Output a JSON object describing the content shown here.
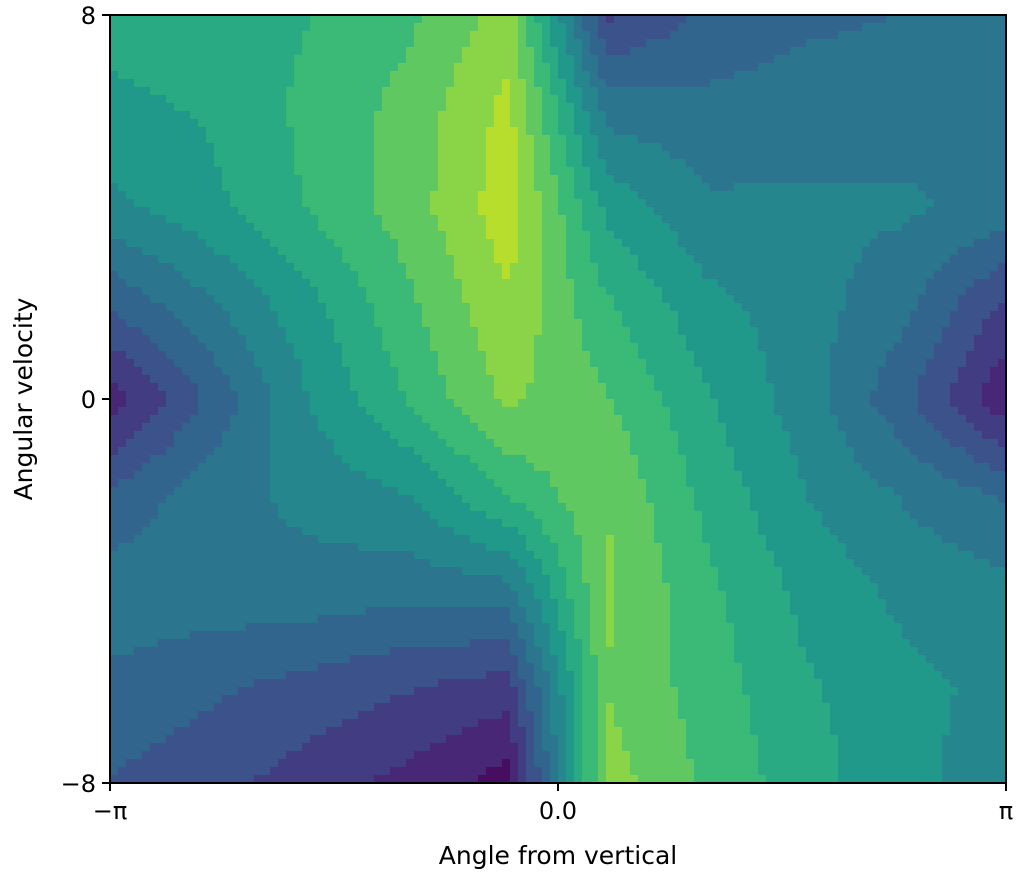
{
  "chart_data": {
    "type": "heatmap",
    "subtype": "filled-contour",
    "title": "",
    "xlabel": "Angle from vertical",
    "ylabel": "Angular velocity",
    "x_range": [
      -3.14159,
      3.14159
    ],
    "y_range": [
      -8,
      8
    ],
    "x_ticks": [
      {
        "value": -3.14159,
        "label": "−π"
      },
      {
        "value": 0.0,
        "label": "0.0"
      },
      {
        "value": 3.14159,
        "label": "π"
      }
    ],
    "y_ticks": [
      {
        "value": 8,
        "label": "8"
      },
      {
        "value": 0,
        "label": "0"
      },
      {
        "value": -8,
        "label": "−8"
      }
    ],
    "colormap": "viridis",
    "value_range": [
      0,
      1
    ],
    "x": [
      -3.14159,
      -2.44346,
      -1.74533,
      -1.0472,
      -0.34907,
      0.34907,
      1.0472,
      1.74533,
      2.44346,
      3.14159
    ],
    "y": [
      8.0,
      6.0,
      4.0,
      2.0,
      0.0,
      -2.0,
      -4.0,
      -6.0,
      -8.0
    ],
    "z": [
      [
        0.6,
        0.62,
        0.64,
        0.7,
        0.82,
        0.2,
        0.3,
        0.34,
        0.36,
        0.38
      ],
      [
        0.55,
        0.58,
        0.66,
        0.74,
        0.88,
        0.4,
        0.38,
        0.4,
        0.4,
        0.42
      ],
      [
        0.48,
        0.55,
        0.65,
        0.75,
        0.9,
        0.55,
        0.44,
        0.44,
        0.44,
        0.4
      ],
      [
        0.3,
        0.42,
        0.55,
        0.7,
        0.85,
        0.65,
        0.52,
        0.46,
        0.38,
        0.2
      ],
      [
        0.1,
        0.3,
        0.5,
        0.65,
        0.8,
        0.72,
        0.58,
        0.46,
        0.3,
        0.08
      ],
      [
        0.3,
        0.4,
        0.45,
        0.5,
        0.65,
        0.78,
        0.62,
        0.5,
        0.42,
        0.35
      ],
      [
        0.4,
        0.4,
        0.4,
        0.38,
        0.4,
        0.8,
        0.66,
        0.55,
        0.48,
        0.45
      ],
      [
        0.34,
        0.3,
        0.26,
        0.22,
        0.18,
        0.78,
        0.68,
        0.58,
        0.52,
        0.48
      ],
      [
        0.28,
        0.24,
        0.18,
        0.12,
        0.04,
        0.82,
        0.7,
        0.6,
        0.52,
        0.46
      ]
    ],
    "grid": false,
    "legend": "none"
  }
}
